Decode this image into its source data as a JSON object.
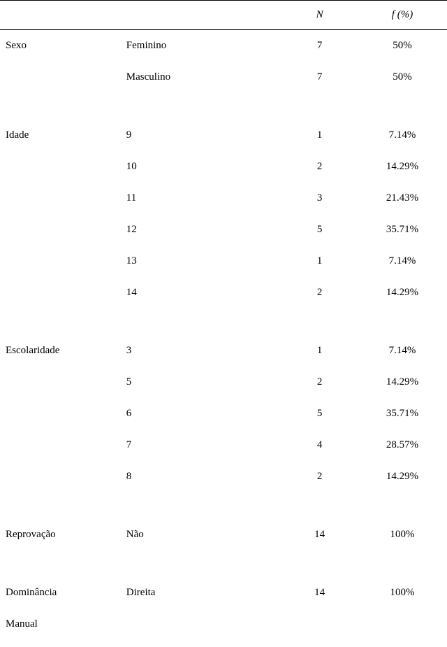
{
  "headers": {
    "n": "N",
    "f": "f (%)"
  },
  "groups": [
    {
      "category": "Sexo",
      "categoryLine2": "",
      "rows": [
        {
          "sub": "Feminino",
          "n": "7",
          "f": "50%"
        },
        {
          "sub": "Masculino",
          "n": "7",
          "f": "50%"
        }
      ]
    },
    {
      "category": "Idade",
      "categoryLine2": "",
      "rows": [
        {
          "sub": "9",
          "n": "1",
          "f": "7.14%"
        },
        {
          "sub": "10",
          "n": "2",
          "f": "14.29%"
        },
        {
          "sub": "11",
          "n": "3",
          "f": "21.43%"
        },
        {
          "sub": "12",
          "n": "5",
          "f": "35.71%"
        },
        {
          "sub": "13",
          "n": "1",
          "f": "7.14%"
        },
        {
          "sub": "14",
          "n": "2",
          "f": "14.29%"
        }
      ]
    },
    {
      "category": "Escolaridade",
      "categoryLine2": "",
      "rows": [
        {
          "sub": "3",
          "n": "1",
          "f": "7.14%"
        },
        {
          "sub": "5",
          "n": "2",
          "f": "14.29%"
        },
        {
          "sub": "6",
          "n": "5",
          "f": "35.71%"
        },
        {
          "sub": "7",
          "n": "4",
          "f": "28.57%"
        },
        {
          "sub": "8",
          "n": "2",
          "f": "14.29%"
        }
      ]
    },
    {
      "category": "Reprovação",
      "categoryLine2": "",
      "rows": [
        {
          "sub": "Não",
          "n": "14",
          "f": "100%"
        }
      ]
    },
    {
      "category": "Dominância",
      "categoryLine2": "Manual",
      "rows": [
        {
          "sub": "Direita",
          "n": "14",
          "f": "100%"
        }
      ]
    }
  ]
}
